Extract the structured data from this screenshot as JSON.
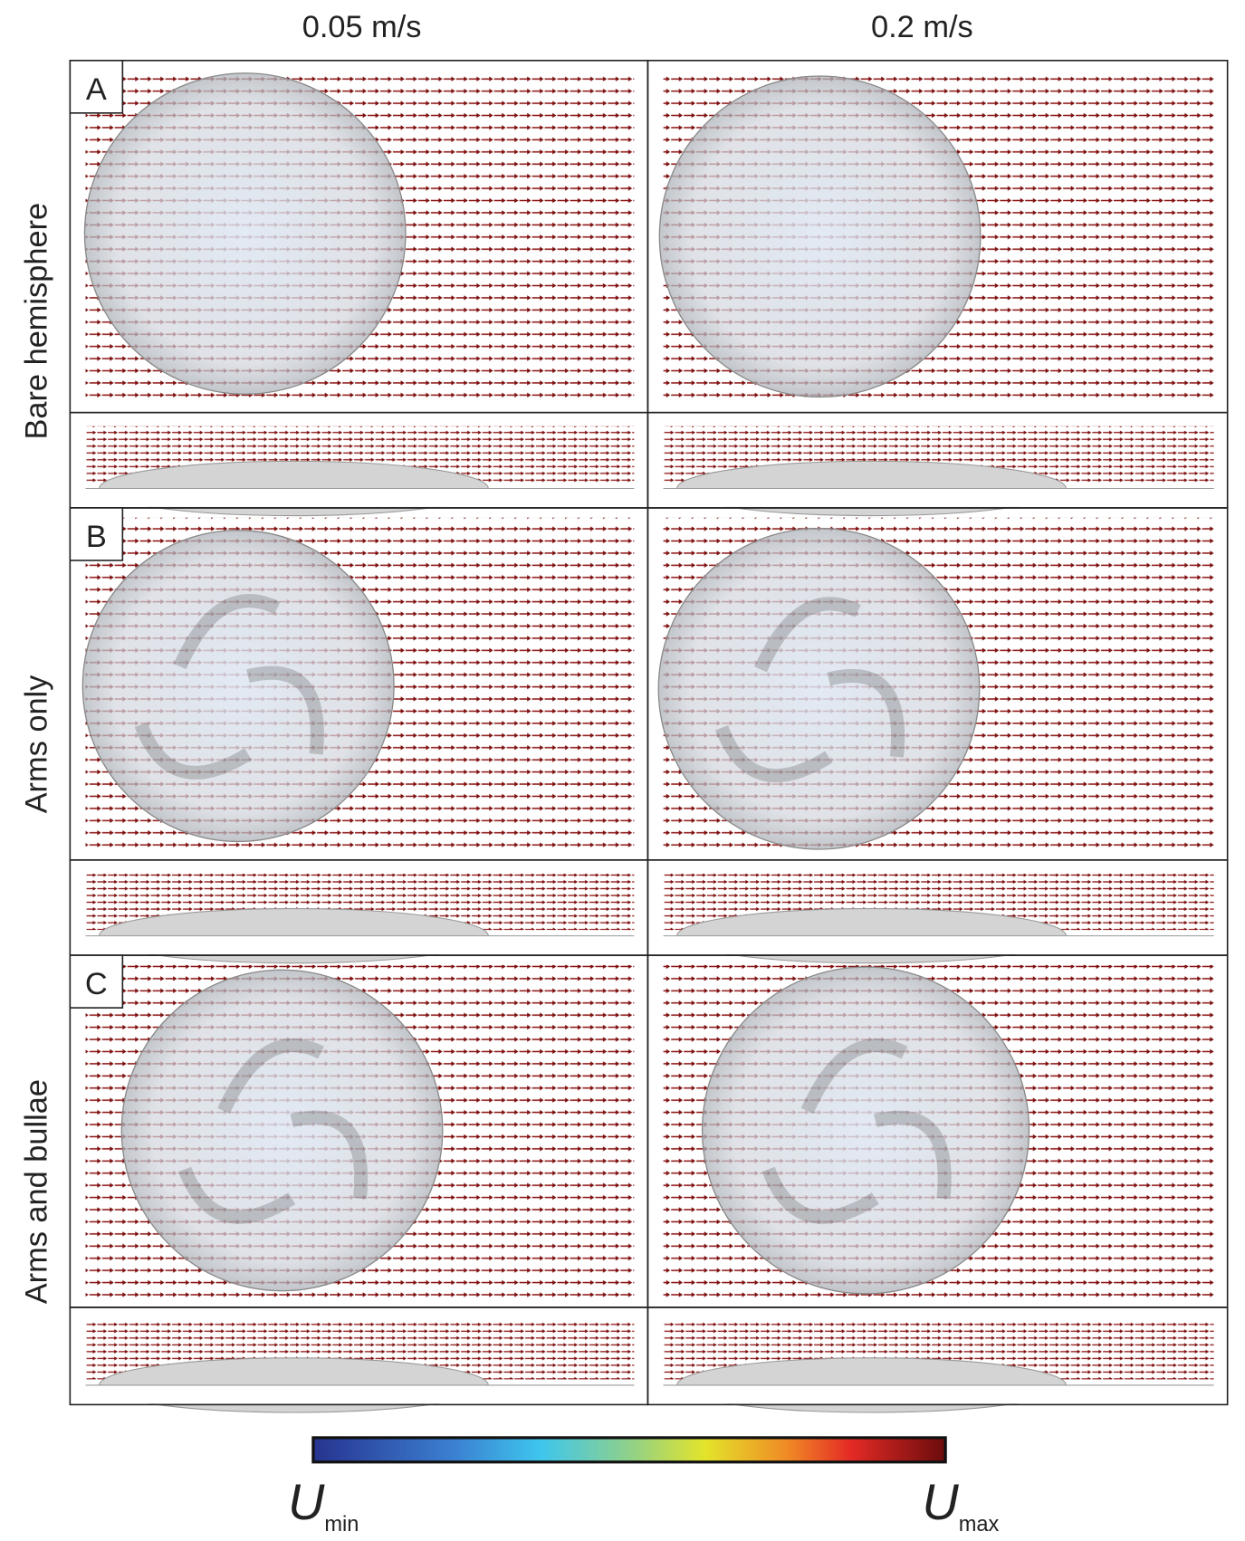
{
  "column_headers": [
    "0.05 m/s",
    "0.2 m/s"
  ],
  "rows": [
    {
      "label": "Bare hemisphere",
      "panel": "A"
    },
    {
      "label": "Arms only",
      "panel": "B"
    },
    {
      "label": "Arms and bullae",
      "panel": "C"
    }
  ],
  "colorbar": {
    "min_label": {
      "symbol": "U",
      "subscript": "min"
    },
    "max_label": {
      "symbol": "U",
      "subscript": "max"
    }
  }
}
